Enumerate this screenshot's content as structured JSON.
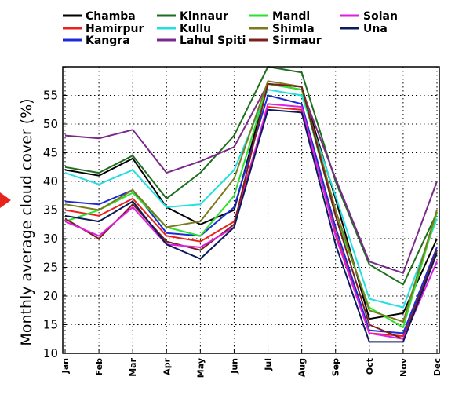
{
  "chart_data": {
    "type": "line",
    "title": "",
    "xlabel": "",
    "ylabel": "Monthly average cloud cover (%)",
    "categories": [
      "Jan",
      "Feb",
      "Mar",
      "Apr",
      "May",
      "Jun",
      "Jul",
      "Aug",
      "Sep",
      "Oct",
      "Nov",
      "Dec"
    ],
    "ylim": [
      10,
      60
    ],
    "yticks": [
      10,
      15,
      20,
      25,
      30,
      35,
      40,
      45,
      50,
      55
    ],
    "grid": true,
    "legend_position": "top",
    "marker_color": "#e8231c",
    "series": [
      {
        "name": "Chamba",
        "color": "#000000",
        "values": [
          42.0,
          41.0,
          44.0,
          35.5,
          32.5,
          35.0,
          57.0,
          56.5,
          37.0,
          16.0,
          17.0,
          30.0
        ]
      },
      {
        "name": "Hamirpur",
        "color": "#e8231c",
        "values": [
          35.0,
          34.0,
          37.0,
          30.5,
          29.5,
          33.0,
          53.0,
          52.5,
          31.0,
          13.5,
          13.0,
          28.0
        ]
      },
      {
        "name": "Kangra",
        "color": "#1c2bd6",
        "values": [
          36.5,
          36.0,
          38.5,
          31.0,
          30.5,
          35.5,
          55.0,
          53.5,
          32.0,
          14.0,
          13.5,
          28.5
        ]
      },
      {
        "name": "Kinnaur",
        "color": "#1e6e1e",
        "values": [
          42.5,
          41.5,
          44.5,
          37.0,
          41.5,
          48.0,
          60.0,
          59.0,
          40.0,
          25.5,
          22.0,
          34.5
        ]
      },
      {
        "name": "Kullu",
        "color": "#22e0e0",
        "values": [
          41.5,
          39.5,
          42.0,
          35.5,
          36.0,
          42.0,
          56.0,
          55.0,
          37.5,
          19.5,
          18.0,
          33.5
        ]
      },
      {
        "name": "Lahul Spiti",
        "color": "#7a2a8a",
        "values": [
          48.0,
          47.5,
          49.0,
          41.5,
          43.5,
          46.0,
          57.0,
          56.0,
          40.5,
          26.0,
          24.0,
          40.0
        ]
      },
      {
        "name": "Mandi",
        "color": "#2ee02e",
        "values": [
          33.0,
          35.0,
          38.0,
          32.0,
          30.5,
          37.5,
          57.0,
          56.0,
          34.0,
          18.0,
          14.5,
          34.5
        ]
      },
      {
        "name": "Shimla",
        "color": "#7a7a1e",
        "values": [
          36.0,
          35.0,
          38.5,
          32.0,
          33.0,
          40.5,
          57.5,
          56.5,
          35.0,
          17.5,
          15.5,
          35.0
        ]
      },
      {
        "name": "Sirmaur",
        "color": "#7a1e1e",
        "values": [
          33.5,
          30.0,
          36.0,
          29.5,
          28.0,
          32.5,
          57.0,
          56.5,
          34.0,
          15.0,
          12.5,
          28.0
        ]
      },
      {
        "name": "Solan",
        "color": "#e01ee0",
        "values": [
          33.0,
          30.5,
          35.5,
          29.0,
          28.5,
          32.0,
          53.5,
          53.0,
          30.5,
          13.5,
          12.5,
          26.0
        ]
      },
      {
        "name": "Una",
        "color": "#0a1a5a",
        "values": [
          34.0,
          33.0,
          36.5,
          29.0,
          26.5,
          32.0,
          52.5,
          52.0,
          29.0,
          12.0,
          12.0,
          27.5
        ]
      }
    ]
  }
}
